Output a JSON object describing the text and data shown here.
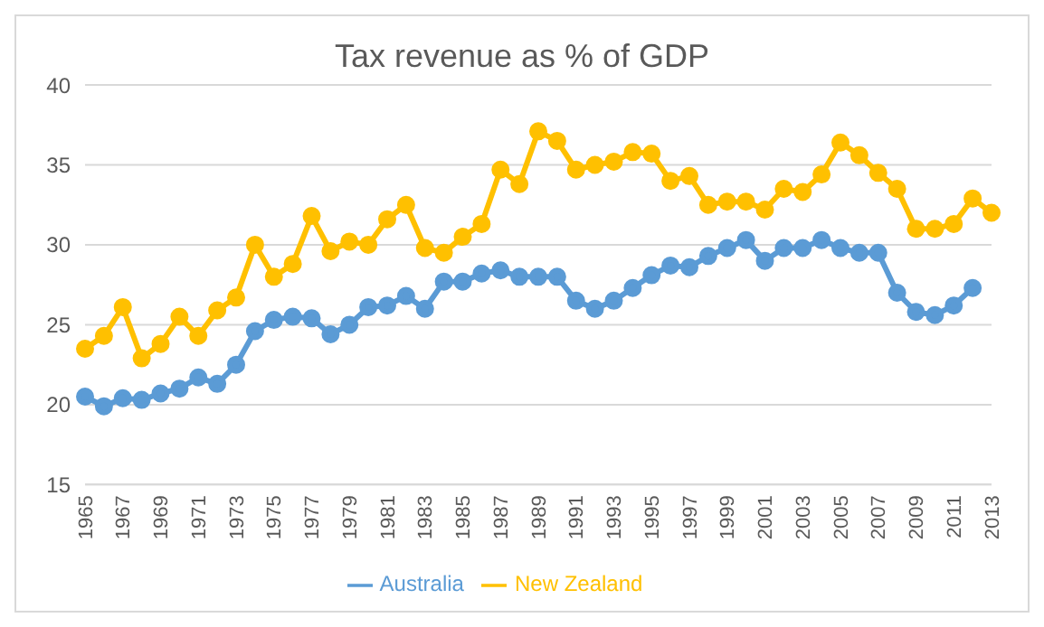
{
  "chart_data": {
    "type": "line",
    "title": "Tax revenue as % of GDP",
    "categories": [
      "1965",
      null,
      "1967",
      null,
      "1969",
      null,
      "1971",
      null,
      "1973",
      null,
      "1975",
      null,
      "1977",
      null,
      "1979",
      null,
      "1981",
      null,
      "1983",
      null,
      "1985",
      null,
      "1987",
      null,
      "1989",
      null,
      "1991",
      null,
      "1993",
      null,
      "1995",
      null,
      "1997",
      null,
      "1999",
      null,
      "2001",
      null,
      "2003",
      null,
      "2005",
      null,
      "2007",
      null,
      "2009",
      null,
      "2011",
      null,
      "2013"
    ],
    "series": [
      {
        "name": "Australia",
        "color": "#5b9bd5",
        "values": [
          20.5,
          19.9,
          20.4,
          20.3,
          20.7,
          21.0,
          21.7,
          21.3,
          22.5,
          24.6,
          25.3,
          25.5,
          25.4,
          24.4,
          25.0,
          26.1,
          26.2,
          26.8,
          26.0,
          27.7,
          27.7,
          28.2,
          28.4,
          28.0,
          28.0,
          28.0,
          26.5,
          26.0,
          26.5,
          27.3,
          28.1,
          28.7,
          28.6,
          29.3,
          29.8,
          30.3,
          29.0,
          29.8,
          29.8,
          30.3,
          29.8,
          29.5,
          29.5,
          27.0,
          25.8,
          25.6,
          26.2,
          27.3,
          null
        ]
      },
      {
        "name": "New Zealand",
        "color": "#ffc000",
        "values": [
          23.5,
          24.3,
          26.1,
          22.9,
          23.8,
          25.5,
          24.3,
          25.9,
          26.7,
          30.0,
          28.0,
          28.8,
          31.8,
          29.6,
          30.2,
          30.0,
          31.6,
          32.5,
          29.8,
          29.5,
          30.5,
          31.3,
          34.7,
          33.8,
          37.1,
          36.5,
          34.7,
          35.0,
          35.2,
          35.8,
          35.7,
          34.0,
          34.3,
          32.5,
          32.7,
          32.7,
          32.2,
          33.5,
          33.3,
          34.4,
          36.4,
          35.6,
          34.5,
          33.5,
          31.0,
          31.0,
          31.3,
          32.9,
          32.0
        ]
      }
    ],
    "ylim": [
      15,
      40
    ],
    "yticks": [
      15,
      20,
      25,
      30,
      35,
      40
    ],
    "grid": "y",
    "legend": "bottom",
    "marker": "circle",
    "line_style": "solid"
  }
}
